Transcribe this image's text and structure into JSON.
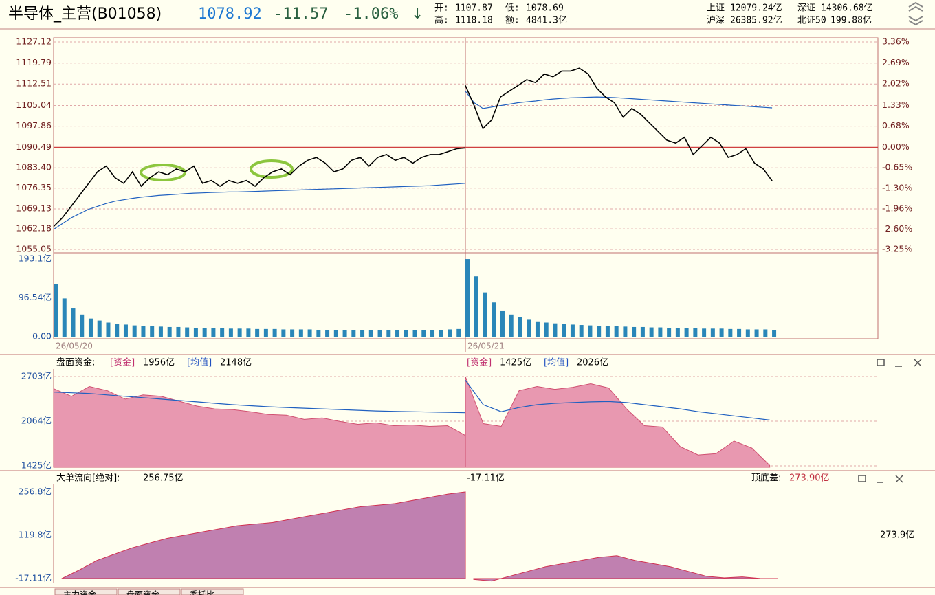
{
  "header": {
    "title": "半导体_主营(B01058)",
    "price": "1078.92",
    "change": "-11.57",
    "pct": "-1.06%",
    "arrow": "↓",
    "open_label": "开:",
    "open": "1107.87",
    "low_label": "低:",
    "low": "1078.69",
    "high_label": "高:",
    "high": "1118.18",
    "amount_label": "额:",
    "amount": "4841.3亿",
    "markets": [
      {
        "name": "上证",
        "value": "12079.24亿"
      },
      {
        "name": "深证",
        "value": "14306.68亿"
      },
      {
        "name": "沪深",
        "value": "26385.92亿"
      },
      {
        "name": "北证50",
        "value": "199.88亿"
      }
    ]
  },
  "price_panel": {
    "ylim": [
      1055.05,
      1127.12
    ],
    "yticks": [
      1127.12,
      1119.79,
      1112.51,
      1105.04,
      1097.86,
      1090.49,
      {
        "value": 1083.4,
        "label": "1083.40"
      },
      1076.35,
      1069.13,
      1062.18,
      1055.05
    ],
    "y2lim": [
      -3.25,
      3.36
    ],
    "y2ticks": [
      {
        "value": 3.36,
        "label": "3.36%"
      },
      {
        "value": 2.69,
        "label": "2.69%"
      },
      {
        "value": 2.02,
        "label": "2.02%"
      },
      {
        "value": 1.33,
        "label": "1.33%"
      },
      {
        "value": 0.68,
        "label": "0.68%"
      },
      {
        "value": 0,
        "label": "0.00%"
      },
      {
        "value": -0.65,
        "label": "-0.65%"
      },
      {
        "value": -1.3,
        "label": "-1.30%"
      },
      {
        "value": -1.96,
        "label": "-1.96%"
      },
      {
        "value": -2.6,
        "label": "-2.60%"
      },
      {
        "value": -3.25,
        "label": "-3.25%"
      }
    ],
    "prev_close": 1090.49,
    "days": [
      {
        "date": "26/05/20",
        "price": [
          1063,
          1066,
          1070,
          1074,
          1078,
          1082,
          1084,
          1080,
          1078,
          1082,
          1077,
          1080,
          1082,
          1081,
          1083,
          1082,
          1084,
          1078,
          1079,
          1077,
          1079,
          1078,
          1079,
          1077,
          1080,
          1082,
          1083,
          1081,
          1084,
          1086,
          1087,
          1085,
          1082,
          1083,
          1086,
          1087,
          1084,
          1087,
          1088,
          1086,
          1087,
          1085,
          1087,
          1088,
          1088,
          1089,
          1090,
          1090.3
        ],
        "avg": [
          1062,
          1064,
          1066,
          1067.5,
          1069,
          1070,
          1071,
          1071.8,
          1072.3,
          1072.8,
          1073.2,
          1073.5,
          1073.8,
          1074,
          1074.2,
          1074.4,
          1074.6,
          1074.7,
          1074.8,
          1074.9,
          1075,
          1075,
          1075.1,
          1075.2,
          1075.3,
          1075.4,
          1075.5,
          1075.6,
          1075.7,
          1075.8,
          1075.9,
          1076,
          1076.1,
          1076.2,
          1076.3,
          1076.4,
          1076.5,
          1076.6,
          1076.7,
          1076.8,
          1076.9,
          1077,
          1077.1,
          1077.2,
          1077.4,
          1077.6,
          1077.8,
          1078
        ]
      },
      {
        "date": "26/05/21",
        "price": [
          1112,
          1105,
          1097,
          1100,
          1108,
          1110,
          1112,
          1114,
          1113,
          1116,
          1115,
          1117,
          1117,
          1118,
          1116,
          1111,
          1108,
          1106,
          1101,
          1104,
          1102,
          1099,
          1096,
          1093,
          1092,
          1094,
          1088,
          1091,
          1094,
          1092,
          1087,
          1088,
          1090,
          1085,
          1083,
          1078.9
        ],
        "avg": [
          1110,
          1106,
          1104,
          1104.5,
          1105,
          1105.5,
          1106,
          1106.3,
          1106.6,
          1107,
          1107.3,
          1107.5,
          1107.7,
          1107.8,
          1107.9,
          1108,
          1107.9,
          1107.8,
          1107.6,
          1107.4,
          1107.2,
          1107,
          1106.8,
          1106.6,
          1106.4,
          1106.2,
          1106,
          1105.8,
          1105.6,
          1105.4,
          1105.2,
          1105,
          1104.8,
          1104.6,
          1104.4,
          1104.2
        ]
      }
    ]
  },
  "volume_panel": {
    "ylim": [
      0,
      193.1
    ],
    "yticks": [
      {
        "value": 193.1,
        "label": "193.1亿"
      },
      {
        "value": 96.54,
        "label": "96.54亿"
      },
      {
        "value": 0,
        "label": "0.00"
      }
    ],
    "days": [
      [
        130,
        95,
        70,
        55,
        45,
        40,
        35,
        32,
        30,
        28,
        27,
        26,
        25,
        24,
        24,
        23,
        22,
        22,
        21,
        21,
        20,
        20,
        20,
        19,
        19,
        19,
        18,
        18,
        18,
        18,
        17,
        17,
        17,
        17,
        17,
        17,
        16,
        16,
        16,
        16,
        16,
        16,
        16,
        17,
        17,
        18,
        19,
        26
      ],
      [
        193,
        150,
        110,
        85,
        65,
        55,
        48,
        42,
        38,
        35,
        33,
        31,
        30,
        29,
        28,
        27,
        26,
        26,
        25,
        24,
        24,
        23,
        23,
        22,
        22,
        21,
        21,
        20,
        20,
        20,
        19,
        19,
        18,
        18,
        18,
        17
      ]
    ]
  },
  "fund_panel": {
    "label": "盘面资金:",
    "day_texts": [
      {
        "fund_label": "[资金]",
        "fund": "1956亿",
        "avg_label": "[均值]",
        "avg": "2148亿"
      },
      {
        "fund_label": "[资金]",
        "fund": "1425亿",
        "avg_label": "[均值]",
        "avg": "2026亿"
      }
    ],
    "ylim": [
      1425,
      2703
    ],
    "yticks": [
      {
        "value": 2703,
        "label": "2703亿"
      },
      {
        "value": 2064,
        "label": "2064亿"
      },
      {
        "value": 1425,
        "label": "1425亿"
      }
    ],
    "days": [
      {
        "fund": [
          2530,
          2420,
          2560,
          2500,
          2380,
          2440,
          2420,
          2350,
          2280,
          2240,
          2230,
          2200,
          2160,
          2150,
          2090,
          2110,
          2060,
          2020,
          2040,
          2000,
          2010,
          1990,
          2000,
          1860
        ],
        "avg": [
          2480,
          2470,
          2460,
          2440,
          2420,
          2400,
          2380,
          2360,
          2340,
          2320,
          2300,
          2285,
          2270,
          2260,
          2250,
          2240,
          2230,
          2220,
          2210,
          2205,
          2200,
          2195,
          2190,
          2185
        ]
      },
      {
        "fund": [
          2703,
          2030,
          1990,
          2500,
          2560,
          2520,
          2550,
          2600,
          2540,
          2240,
          2000,
          1980,
          1700,
          1580,
          1600,
          1780,
          1680,
          1430
        ],
        "avg": [
          2650,
          2300,
          2200,
          2260,
          2300,
          2320,
          2330,
          2340,
          2345,
          2330,
          2300,
          2270,
          2240,
          2200,
          2170,
          2140,
          2110,
          2080
        ]
      }
    ]
  },
  "big_panel": {
    "label": "大单流向[绝对]:",
    "value": "256.75亿",
    "day2_value": "-17.11亿",
    "diff_label": "顶底差:",
    "diff": "273.90亿",
    "right_label": "273.9亿",
    "ylim": [
      -17.11,
      256.8
    ],
    "yticks": [
      {
        "value": 256.8,
        "label": "256.8亿"
      },
      {
        "value": 119.8,
        "label": "119.8亿"
      },
      {
        "value": -17.11,
        "label": "-17.11亿"
      }
    ],
    "days": [
      [
        -17,
        10,
        40,
        60,
        80,
        95,
        110,
        120,
        130,
        140,
        150,
        155,
        160,
        170,
        180,
        190,
        200,
        210,
        215,
        220,
        230,
        240,
        250,
        256.75
      ],
      [
        -20,
        -25,
        -10,
        5,
        20,
        30,
        40,
        50,
        55,
        40,
        30,
        20,
        5,
        -10,
        -15,
        -12,
        -17,
        -17.11
      ]
    ]
  },
  "tabs": [
    "主力资金",
    "盘面资金",
    "委托比"
  ]
}
